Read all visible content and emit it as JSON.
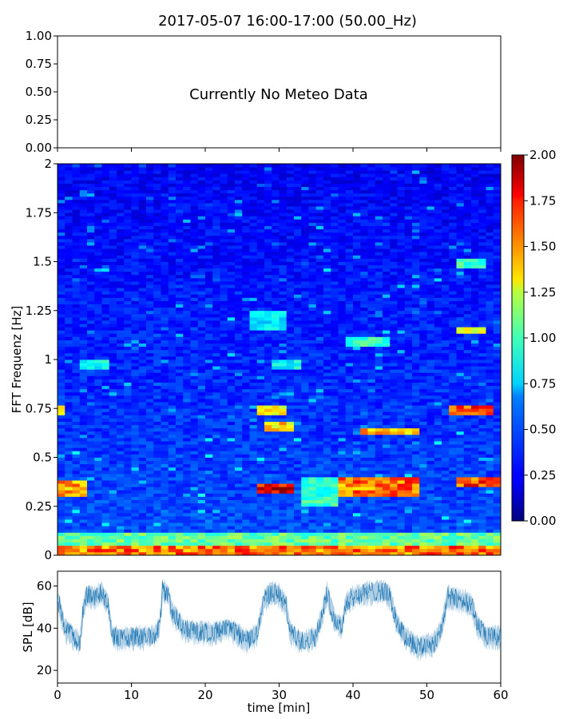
{
  "title": "2017-05-07 16:00-17:00 (50.00_Hz)",
  "chart_data": [
    {
      "type": "text-panel",
      "message": "Currently No Meteo Data",
      "ylim": [
        0,
        1
      ],
      "yticks": [
        0.0,
        0.25,
        0.5,
        0.75,
        1.0
      ],
      "ytick_labels": [
        "0.00",
        "0.25",
        "0.50",
        "0.75",
        "1.00"
      ],
      "xtick_count": 7,
      "xtick_labels_visible": false
    },
    {
      "type": "heatmap",
      "ylabel": "FFT Frequenz [Hz]",
      "xlim": [
        0,
        60
      ],
      "ylim": [
        0,
        2
      ],
      "yticks": [
        0,
        0.25,
        0.5,
        0.75,
        1,
        1.25,
        1.5,
        1.75,
        2
      ],
      "ytick_labels": [
        "0",
        "0.25",
        "0.5",
        "0.75",
        "1",
        "1.25",
        "1.5",
        "1.75",
        "2"
      ],
      "colormap": "jet",
      "colorbar": {
        "range": [
          0,
          2
        ],
        "ticks": [
          0.0,
          0.25,
          0.5,
          0.75,
          1.0,
          1.25,
          1.5,
          1.75,
          2.0
        ],
        "tick_labels": [
          "0.00",
          "0.25",
          "0.50",
          "0.75",
          "1.00",
          "1.25",
          "1.50",
          "1.75",
          "2.00"
        ]
      },
      "features": [
        {
          "t0": 0,
          "t1": 60,
          "f0": 0.0,
          "f1": 0.05,
          "value": 1.6
        },
        {
          "t0": 0,
          "t1": 60,
          "f0": 0.05,
          "f1": 0.12,
          "value": 1.0
        },
        {
          "t0": 0,
          "t1": 4,
          "f0": 0.3,
          "f1": 0.38,
          "value": 1.5
        },
        {
          "t0": 27.5,
          "t1": 32,
          "f0": 0.31,
          "f1": 0.37,
          "value": 1.85
        },
        {
          "t0": 33,
          "t1": 38,
          "f0": 0.25,
          "f1": 0.4,
          "value": 0.9
        },
        {
          "t0": 38,
          "t1": 49,
          "f0": 0.3,
          "f1": 0.4,
          "value": 1.6
        },
        {
          "t0": 54,
          "t1": 60,
          "f0": 0.35,
          "f1": 0.4,
          "value": 1.7
        },
        {
          "t0": 0,
          "t1": 1,
          "f0": 0.72,
          "f1": 0.77,
          "value": 1.5
        },
        {
          "t0": 27.5,
          "t1": 31,
          "f0": 0.72,
          "f1": 0.76,
          "value": 1.35
        },
        {
          "t0": 28,
          "t1": 32,
          "f0": 0.63,
          "f1": 0.68,
          "value": 1.4
        },
        {
          "t0": 41,
          "t1": 49,
          "f0": 0.61,
          "f1": 0.65,
          "value": 1.45
        },
        {
          "t0": 53.5,
          "t1": 59,
          "f0": 0.72,
          "f1": 0.77,
          "value": 1.75
        },
        {
          "t0": 3,
          "t1": 7,
          "f0": 0.95,
          "f1": 1.0,
          "value": 0.8
        },
        {
          "t0": 29,
          "t1": 33,
          "f0": 0.95,
          "f1": 1.0,
          "value": 0.8
        },
        {
          "t0": 39,
          "t1": 45,
          "f0": 1.06,
          "f1": 1.12,
          "value": 0.9
        },
        {
          "t0": 26,
          "t1": 31,
          "f0": 1.15,
          "f1": 1.25,
          "value": 0.75
        },
        {
          "t0": 54,
          "t1": 58,
          "f0": 1.13,
          "f1": 1.17,
          "value": 1.2
        },
        {
          "t0": 54,
          "t1": 58,
          "f0": 1.47,
          "f1": 1.51,
          "value": 0.9
        }
      ]
    },
    {
      "type": "line",
      "xlabel": "time [min]",
      "ylabel": "SPL [dB]",
      "xlim": [
        0,
        60
      ],
      "ylim": [
        14,
        67
      ],
      "xticks": [
        0,
        10,
        20,
        30,
        40,
        50,
        60
      ],
      "xtick_labels": [
        "0",
        "10",
        "20",
        "30",
        "40",
        "50",
        "60"
      ],
      "yticks": [
        20,
        40,
        60
      ],
      "ytick_labels": [
        "20",
        "40",
        "60"
      ],
      "color": "#1f77b4",
      "levels": [
        {
          "t": 0,
          "db": 55
        },
        {
          "t": 1,
          "db": 40
        },
        {
          "t": 2,
          "db": 36
        },
        {
          "t": 3,
          "db": 33
        },
        {
          "t": 3.5,
          "db": 50
        },
        {
          "t": 4,
          "db": 56
        },
        {
          "t": 5,
          "db": 55
        },
        {
          "t": 6,
          "db": 57
        },
        {
          "t": 6.8,
          "db": 52
        },
        {
          "t": 7.5,
          "db": 36
        },
        {
          "t": 9,
          "db": 35
        },
        {
          "t": 11,
          "db": 36
        },
        {
          "t": 13,
          "db": 36
        },
        {
          "t": 13.8,
          "db": 40
        },
        {
          "t": 14.2,
          "db": 58
        },
        {
          "t": 15,
          "db": 56
        },
        {
          "t": 15.5,
          "db": 48
        },
        {
          "t": 17,
          "db": 40
        },
        {
          "t": 19,
          "db": 38
        },
        {
          "t": 21,
          "db": 38
        },
        {
          "t": 23,
          "db": 40
        },
        {
          "t": 25,
          "db": 36
        },
        {
          "t": 26,
          "db": 34
        },
        {
          "t": 27,
          "db": 38
        },
        {
          "t": 28,
          "db": 54
        },
        {
          "t": 29,
          "db": 57
        },
        {
          "t": 30,
          "db": 56
        },
        {
          "t": 31,
          "db": 50
        },
        {
          "t": 31.5,
          "db": 38
        },
        {
          "t": 33,
          "db": 34
        },
        {
          "t": 35,
          "db": 36
        },
        {
          "t": 35.8,
          "db": 46
        },
        {
          "t": 36.5,
          "db": 57
        },
        {
          "t": 37.5,
          "db": 44
        },
        {
          "t": 38.5,
          "db": 40
        },
        {
          "t": 39,
          "db": 52
        },
        {
          "t": 40,
          "db": 55
        },
        {
          "t": 42,
          "db": 57
        },
        {
          "t": 44,
          "db": 58
        },
        {
          "t": 45,
          "db": 55
        },
        {
          "t": 45.8,
          "db": 44
        },
        {
          "t": 47,
          "db": 36
        },
        {
          "t": 49,
          "db": 31
        },
        {
          "t": 51,
          "db": 33
        },
        {
          "t": 52,
          "db": 40
        },
        {
          "t": 52.8,
          "db": 55
        },
        {
          "t": 54,
          "db": 54
        },
        {
          "t": 56,
          "db": 52
        },
        {
          "t": 56.8,
          "db": 42
        },
        {
          "t": 58,
          "db": 36
        },
        {
          "t": 60,
          "db": 36
        }
      ],
      "noise_db": 6
    }
  ]
}
